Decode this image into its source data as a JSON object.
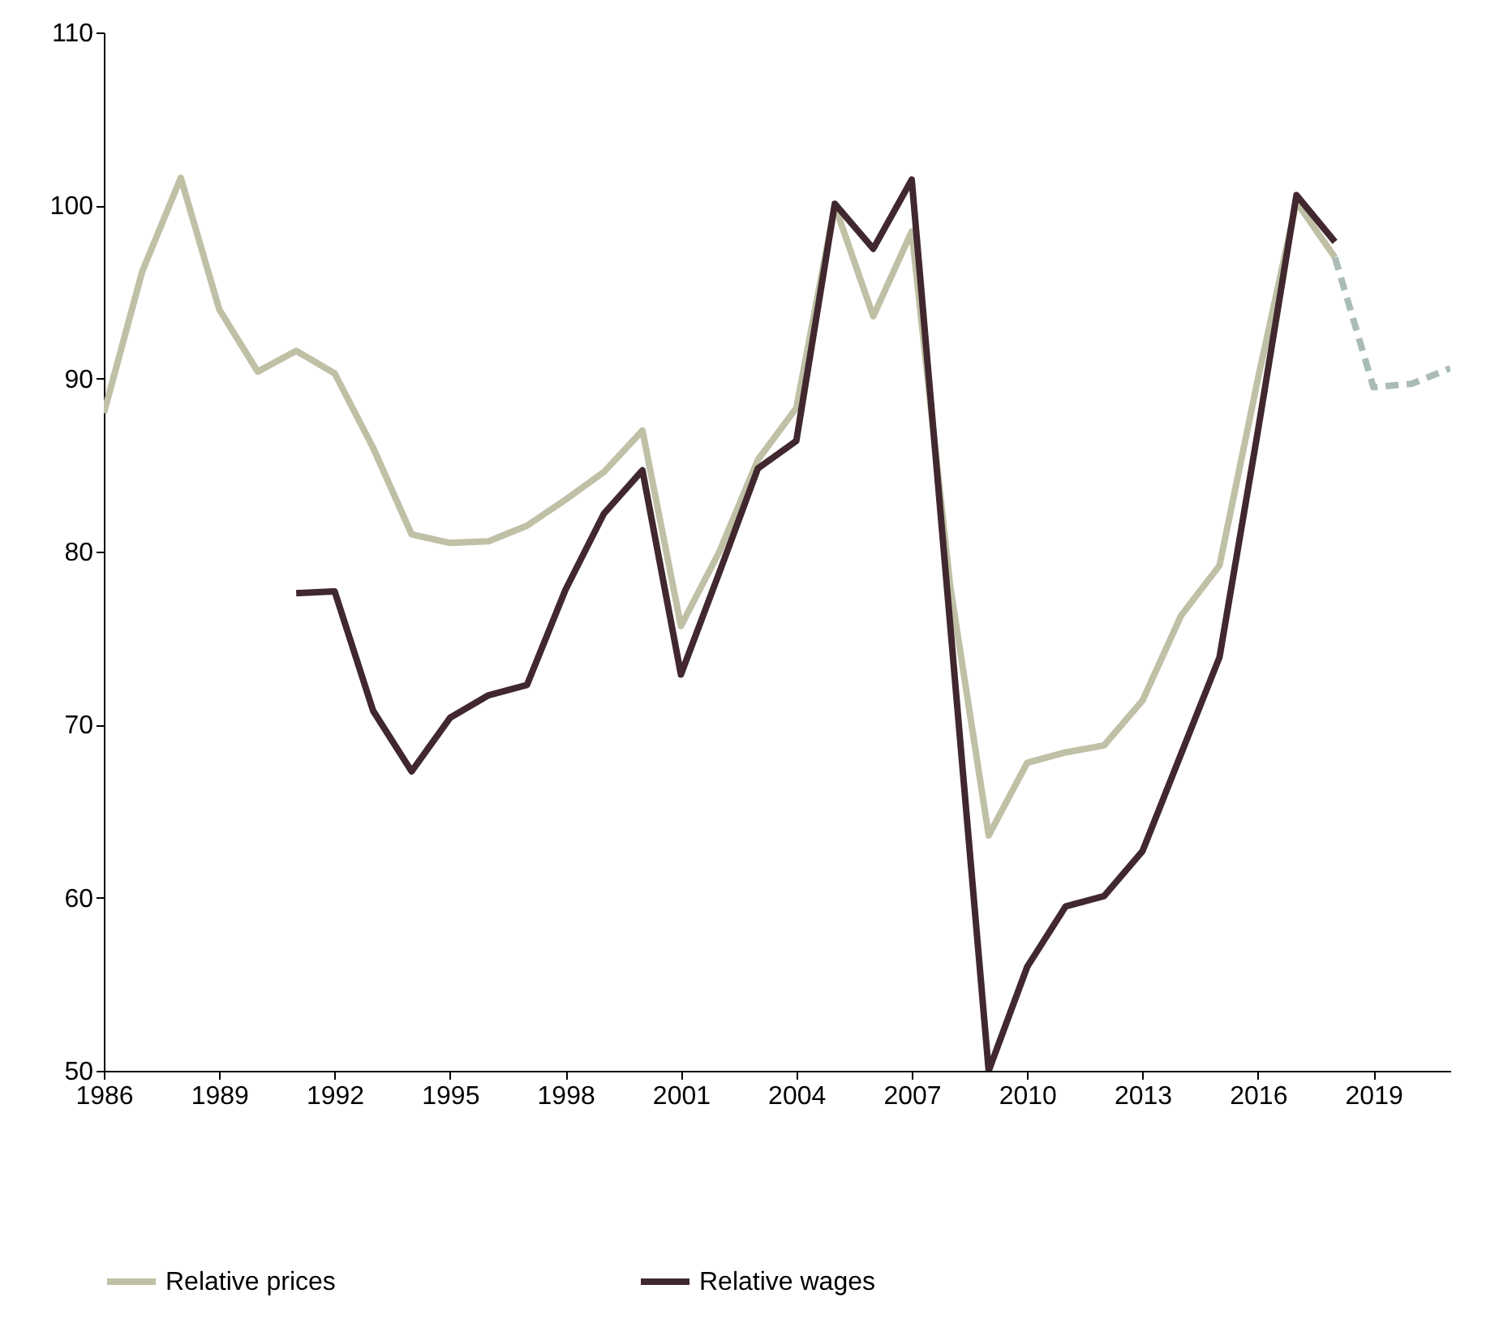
{
  "chart_data": {
    "type": "line",
    "xlim": [
      1986,
      2021
    ],
    "xticks": [
      1986,
      1989,
      1992,
      1995,
      1998,
      2001,
      2004,
      2007,
      2010,
      2013,
      2016,
      2019
    ],
    "ylim": [
      50,
      110
    ],
    "yticks": [
      50,
      60,
      70,
      80,
      90,
      100,
      110
    ],
    "grid": false,
    "legend": "bottom",
    "series": [
      {
        "name": "Relative prices",
        "color": "#bfc0a5",
        "line_style": "solid",
        "x": [
          1986,
          1987,
          1988,
          1989,
          1990,
          1991,
          1992,
          1993,
          1994,
          1995,
          1996,
          1997,
          1998,
          1999,
          2000,
          2001,
          2002,
          2003,
          2004,
          2005,
          2006,
          2007,
          2008,
          2009,
          2010,
          2011,
          2012,
          2013,
          2014,
          2015,
          2016,
          2017,
          2018
        ],
        "values": [
          88,
          96.2,
          101.6,
          94,
          90.4,
          91.6,
          90.3,
          86,
          81,
          80.5,
          80.6,
          81.5,
          83,
          84.6,
          87,
          75.7,
          80,
          85.3,
          88.3,
          100,
          93.6,
          98.5,
          78,
          63.6,
          67.8,
          68.4,
          68.8,
          71.4,
          76.3,
          79.2,
          90,
          100.2,
          97
        ]
      },
      {
        "name": "Relative wages",
        "color": "#40282e",
        "line_style": "solid",
        "x": [
          1991,
          1992,
          1993,
          1994,
          1995,
          1996,
          1997,
          1998,
          1999,
          2000,
          2001,
          2002,
          2003,
          2004,
          2005,
          2006,
          2007,
          2009,
          2010,
          2011,
          2012,
          2013,
          2014,
          2015,
          2016,
          2017,
          2018
        ],
        "values": [
          77.6,
          77.7,
          70.8,
          67.3,
          70.4,
          71.7,
          72.3,
          77.8,
          82.2,
          84.7,
          72.9,
          78.8,
          84.8,
          86.4,
          100.1,
          97.5,
          101.5,
          50,
          56,
          59.5,
          60.1,
          62.7,
          68.3,
          73.9,
          87,
          100.6,
          97.9
        ]
      },
      {
        "color": "#a9bcb5",
        "line_style": "dashed",
        "x": [
          2018,
          2019,
          2020,
          2021
        ],
        "values": [
          97,
          89.5,
          89.7,
          90.6
        ]
      }
    ]
  }
}
